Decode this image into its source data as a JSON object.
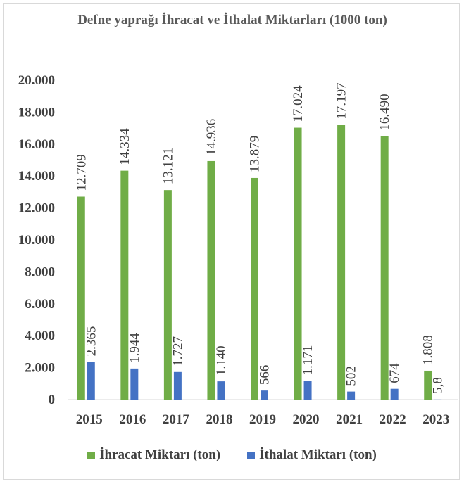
{
  "chart_data": {
    "type": "bar",
    "title": "Defne yaprağı İhracat ve İthalat Miktarları (1000 ton)",
    "categories": [
      "2015",
      "2016",
      "2017",
      "2018",
      "2019",
      "2020",
      "2021",
      "2022",
      "2023"
    ],
    "series": [
      {
        "name": "İhracat Miktarı (ton)",
        "color": "#70ad47",
        "values": [
          12709,
          14334,
          13121,
          14936,
          13879,
          17024,
          17197,
          16490,
          1808
        ],
        "labels": [
          "12.709",
          "14.334",
          "13.121",
          "14.936",
          "13.879",
          "17.024",
          "17.197",
          "16.490",
          "1.808"
        ]
      },
      {
        "name": "İthalat Miktarı (ton)",
        "color": "#4472c4",
        "values": [
          2365,
          1944,
          1727,
          1140,
          566,
          1171,
          502,
          674,
          5.8
        ],
        "labels": [
          "2.365",
          "1.944",
          "1.727",
          "1.140",
          "566",
          "1.171",
          "502",
          "674",
          "5,8"
        ]
      }
    ],
    "y_ticks": [
      "0",
      "2.000",
      "4.000",
      "6.000",
      "8.000",
      "10.000",
      "12.000",
      "14.000",
      "16.000",
      "18.000",
      "20.000"
    ],
    "ylim": [
      0,
      20000
    ],
    "grid": false,
    "legend_position": "bottom"
  }
}
